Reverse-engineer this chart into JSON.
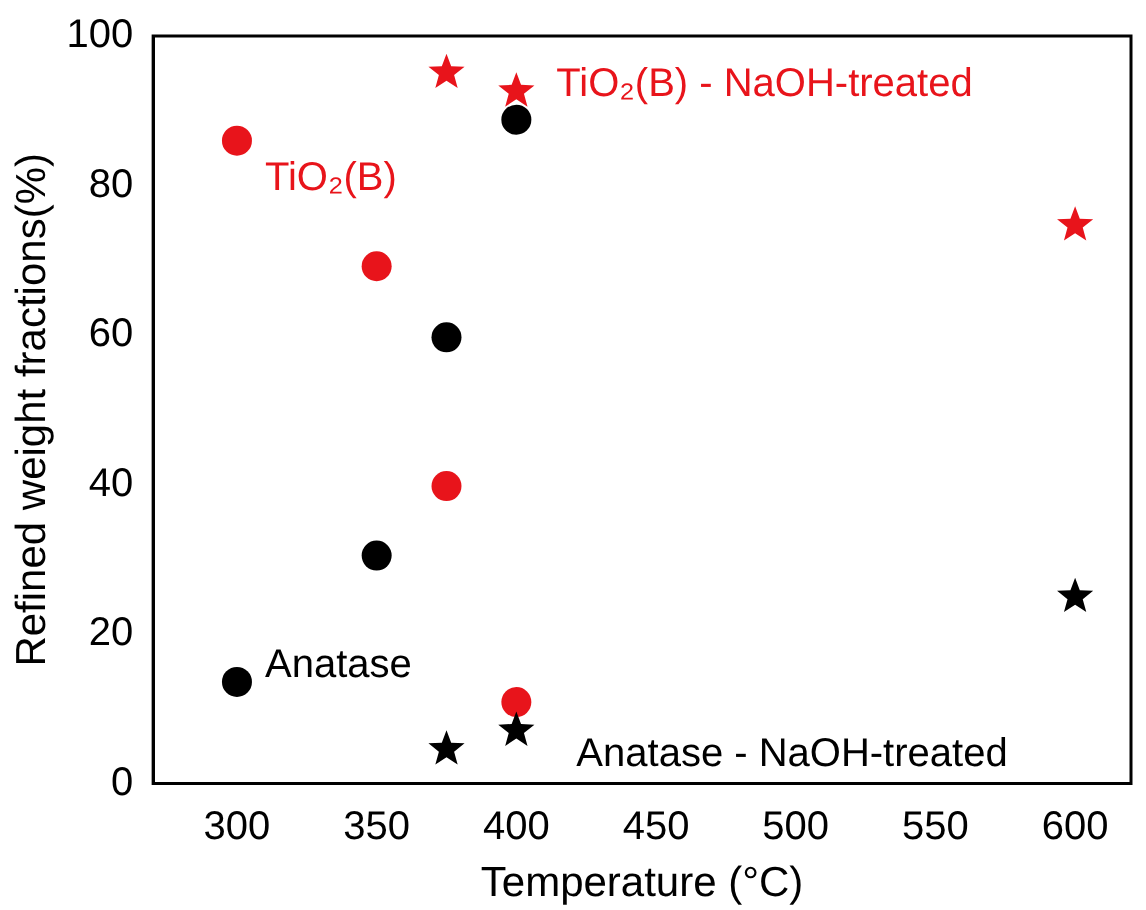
{
  "chart_data": {
    "type": "scatter",
    "xlabel": "Temperature (°C)",
    "ylabel": "Refined weight fractions(%)",
    "xlim": [
      270,
      620
    ],
    "xticks": [
      300,
      350,
      400,
      450,
      500,
      550,
      600
    ],
    "ylim": [
      0,
      100
    ],
    "yticks": [
      0,
      20,
      40,
      60,
      80,
      100
    ],
    "grid": false,
    "legend": false,
    "series": [
      {
        "name": "Anatase",
        "color": "#000000",
        "marker": "circle",
        "x": [
          300,
          350,
          375,
          400
        ],
        "values": [
          13.6,
          30.5,
          59.7,
          88.8
        ]
      },
      {
        "name": "TiO₂(B)",
        "color": "#e8141b",
        "marker": "circle",
        "x": [
          300,
          350,
          375,
          400
        ],
        "values": [
          86,
          69.2,
          39.8,
          10.9
        ]
      },
      {
        "name": "TiO₂(B) - NaOH-treated",
        "color": "#e8141b",
        "marker": "star",
        "x": [
          375,
          400,
          600
        ],
        "values": [
          95.1,
          92.6,
          74.7
        ]
      },
      {
        "name": "Anatase - NaOH-treated",
        "color": "#000000",
        "marker": "star",
        "x": [
          375,
          400,
          600
        ],
        "values": [
          4.6,
          7.1,
          25
        ]
      }
    ]
  }
}
